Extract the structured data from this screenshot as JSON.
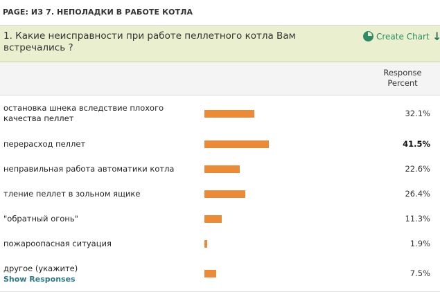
{
  "page_header": "PAGE: ИЗ 7. НЕПОЛАДКИ В РАБОТЕ КОТЛА",
  "question": {
    "title": "1. Какие неисправности при работе пеллетного котла Вам встречались ?",
    "create_chart_label": "Create Chart",
    "chart_icon": "pie-chart-icon",
    "download_icon": "arrow-down-icon"
  },
  "table": {
    "column_header": "Response Percent",
    "rows": [
      {
        "label": "остановка шнека вследствие плохого качества пеллет",
        "percent": "32.1%",
        "value": 32.1
      },
      {
        "label": "перерасход пеллет",
        "percent": "41.5%",
        "value": 41.5,
        "bold": true
      },
      {
        "label": "неправильная работа автоматики котла",
        "percent": "22.6%",
        "value": 22.6
      },
      {
        "label": "тление пеллет в зольном ящике",
        "percent": "26.4%",
        "value": 26.4
      },
      {
        "label": "\"обратный огонь\"",
        "percent": "11.3%",
        "value": 11.3
      },
      {
        "label": "пожароопасная ситуация",
        "percent": "1.9%",
        "value": 1.9
      },
      {
        "label": "другое (укажите)",
        "percent": "7.5%",
        "value": 7.5,
        "link": "Show Responses"
      }
    ]
  },
  "colors": {
    "bar": "#ec8a36",
    "question_bg": "#eaf0cf",
    "link": "#2a8a64"
  }
}
